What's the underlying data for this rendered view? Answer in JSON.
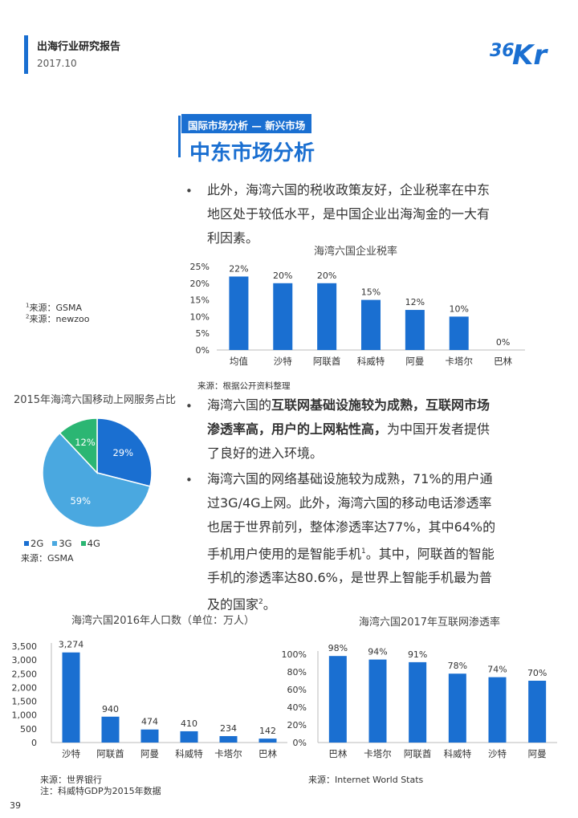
{
  "header": {
    "report_title": "出海行业研究报告",
    "report_date": "2017.10",
    "logo_text": "36Kr",
    "brand_color": "#1a6fd1"
  },
  "section": {
    "tag": "国际市场分析 — 新兴市场",
    "title": "中东市场分析"
  },
  "para1": {
    "bullet": "•",
    "lines": [
      "此外，海湾六国的税收政策友好，企业税率在中东",
      "地区处于较低水平，是中国企业出海淘金的一大有",
      "利因素。"
    ]
  },
  "footnotes": {
    "sup1": "1",
    "note1": "来源：GSMA",
    "sup2": "2",
    "note2": "来源：newzoo"
  },
  "para2": {
    "bullet": "•",
    "line1_bold1": "海湾六国的",
    "line1_bold2": "互联网基础设施较为成熟，互联网市场",
    "line2_bold": "渗透率高，用户的上网粘性高，",
    "line2_rest": "为中国开发者提供",
    "line3": "了良好的进入环境。"
  },
  "para3": {
    "bullet": "•",
    "lines": [
      "海湾六国的网络基础设施较为成熟，71%的用户通",
      "过3G/4G上网。此外，海湾六国的移动电话渗透率",
      "也居于世界前列，整体渗透率达77%，其中64%的"
    ],
    "line4_pre": "手机用户使用的是智能手机",
    "line4_sup": "1",
    "line4_post": "。其中，阿联酋的智能",
    "line5": "手机的渗透率达80.6%，是世界上智能手机最为普",
    "line6_pre": "及的国家",
    "line6_sup": "2",
    "line6_post": "。"
  },
  "tax_chart_source": "来源：根据公开资料整理",
  "pie_source": "来源：GSMA",
  "pop_source1": "来源：世界银行",
  "pop_source2": "注：科威特GDP为2015年数据",
  "net_source": "来源：Internet World Stats",
  "page_number": "39",
  "chart_data": [
    {
      "id": "tax",
      "type": "bar",
      "title": "海湾六国企业税率",
      "categories": [
        "均值",
        "沙特",
        "阿联酋",
        "科威特",
        "阿曼",
        "卡塔尔",
        "巴林"
      ],
      "values": [
        22,
        20,
        20,
        15,
        12,
        10,
        0
      ],
      "value_labels": [
        "22%",
        "20%",
        "20%",
        "15%",
        "12%",
        "10%",
        "0%"
      ],
      "ylim": [
        0,
        25
      ],
      "yticks": [
        "0%",
        "5%",
        "10%",
        "15%",
        "20%",
        "25%"
      ],
      "color": "#1a6fd1"
    },
    {
      "id": "pie",
      "type": "pie",
      "title": "2015年海湾六国移动上网服务占比",
      "labels": [
        "2G",
        "3G",
        "4G"
      ],
      "values": [
        29,
        59,
        12
      ],
      "value_labels": [
        "29%",
        "59%",
        "12%"
      ],
      "colors": [
        "#1a6fd1",
        "#4aa8e0",
        "#2bb673"
      ],
      "legend_position": "bottom-left"
    },
    {
      "id": "pop",
      "type": "bar",
      "title": "海湾六国2016年人口数（单位：万人）",
      "categories": [
        "沙特",
        "阿联酋",
        "阿曼",
        "科威特",
        "卡塔尔",
        "巴林"
      ],
      "values": [
        3274,
        940,
        474,
        410,
        234,
        142
      ],
      "value_labels": [
        "3,274",
        "940",
        "474",
        "410",
        "234",
        "142"
      ],
      "ylim": [
        0,
        3500
      ],
      "yticks": [
        "0",
        "500",
        "1,000",
        "1,500",
        "2,000",
        "2,500",
        "3,000",
        "3,500"
      ],
      "color": "#1a6fd1"
    },
    {
      "id": "net",
      "type": "bar",
      "title": "海湾六国2017年互联网渗透率",
      "categories": [
        "巴林",
        "卡塔尔",
        "阿联酋",
        "科威特",
        "沙特",
        "阿曼"
      ],
      "values": [
        98,
        94,
        91,
        78,
        74,
        70
      ],
      "value_labels": [
        "98%",
        "94%",
        "91%",
        "78%",
        "74%",
        "70%"
      ],
      "ylim": [
        0,
        100
      ],
      "yticks": [
        "0%",
        "20%",
        "40%",
        "60%",
        "80%",
        "100%"
      ],
      "color": "#1a6fd1"
    }
  ]
}
